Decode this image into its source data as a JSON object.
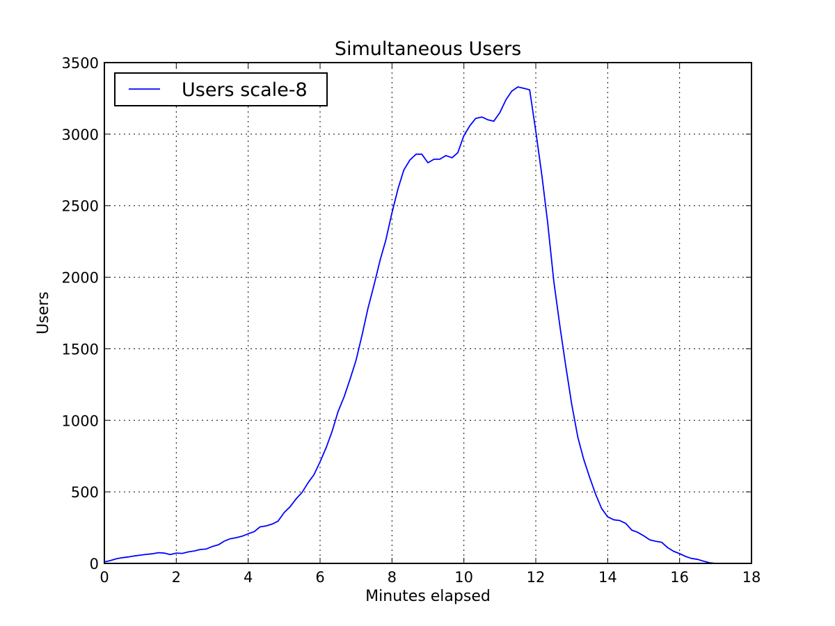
{
  "chart_data": {
    "type": "line",
    "title": "Simultaneous Users",
    "xlabel": "Minutes elapsed",
    "ylabel": "Users",
    "xlim": [
      0,
      18
    ],
    "ylim": [
      0,
      3500
    ],
    "xticks": [
      0,
      2,
      4,
      6,
      8,
      10,
      12,
      14,
      16,
      18
    ],
    "yticks": [
      0,
      500,
      1000,
      1500,
      2000,
      2500,
      3000,
      3500
    ],
    "grid": true,
    "legend_position": "top-left",
    "series": [
      {
        "name": "Users scale-8",
        "color": "#0000ff",
        "x": [
          0,
          0.17,
          0.33,
          0.5,
          0.67,
          0.83,
          1.0,
          1.17,
          1.33,
          1.5,
          1.67,
          1.83,
          2.0,
          2.17,
          2.33,
          2.5,
          2.67,
          2.83,
          3.0,
          3.17,
          3.33,
          3.5,
          3.67,
          3.83,
          4.0,
          4.17,
          4.33,
          4.5,
          4.67,
          4.83,
          5.0,
          5.17,
          5.33,
          5.5,
          5.67,
          5.83,
          6.0,
          6.17,
          6.33,
          6.5,
          6.67,
          6.83,
          7.0,
          7.17,
          7.33,
          7.5,
          7.67,
          7.83,
          8.0,
          8.17,
          8.33,
          8.5,
          8.67,
          8.83,
          9.0,
          9.17,
          9.33,
          9.5,
          9.67,
          9.83,
          10.0,
          10.17,
          10.33,
          10.5,
          10.67,
          10.83,
          11.0,
          11.17,
          11.33,
          11.5,
          11.67,
          11.83,
          12.0,
          12.17,
          12.33,
          12.5,
          12.67,
          12.83,
          13.0,
          13.17,
          13.33,
          13.5,
          13.67,
          13.83,
          14.0,
          14.17,
          14.33,
          14.5,
          14.67,
          14.83,
          15.0,
          15.17,
          15.33,
          15.5,
          15.67,
          15.83,
          16.0,
          16.17,
          16.33,
          16.5,
          16.67,
          16.83,
          17.0,
          17.1
        ],
        "y": [
          10,
          20,
          32,
          40,
          45,
          52,
          58,
          63,
          67,
          75,
          72,
          62,
          72,
          70,
          80,
          87,
          97,
          100,
          118,
          130,
          155,
          172,
          180,
          190,
          207,
          222,
          255,
          262,
          275,
          295,
          355,
          397,
          450,
          497,
          565,
          620,
          710,
          810,
          920,
          1060,
          1165,
          1285,
          1420,
          1600,
          1780,
          1945,
          2120,
          2260,
          2450,
          2620,
          2750,
          2820,
          2860,
          2860,
          2800,
          2825,
          2825,
          2850,
          2835,
          2870,
          2990,
          3060,
          3110,
          3120,
          3100,
          3090,
          3150,
          3240,
          3300,
          3330,
          3320,
          3310,
          3020,
          2710,
          2380,
          1975,
          1660,
          1385,
          1110,
          880,
          730,
          600,
          480,
          385,
          325,
          305,
          300,
          280,
          233,
          218,
          193,
          165,
          155,
          148,
          110,
          85,
          68,
          48,
          35,
          28,
          15,
          5,
          0,
          0
        ]
      }
    ]
  }
}
